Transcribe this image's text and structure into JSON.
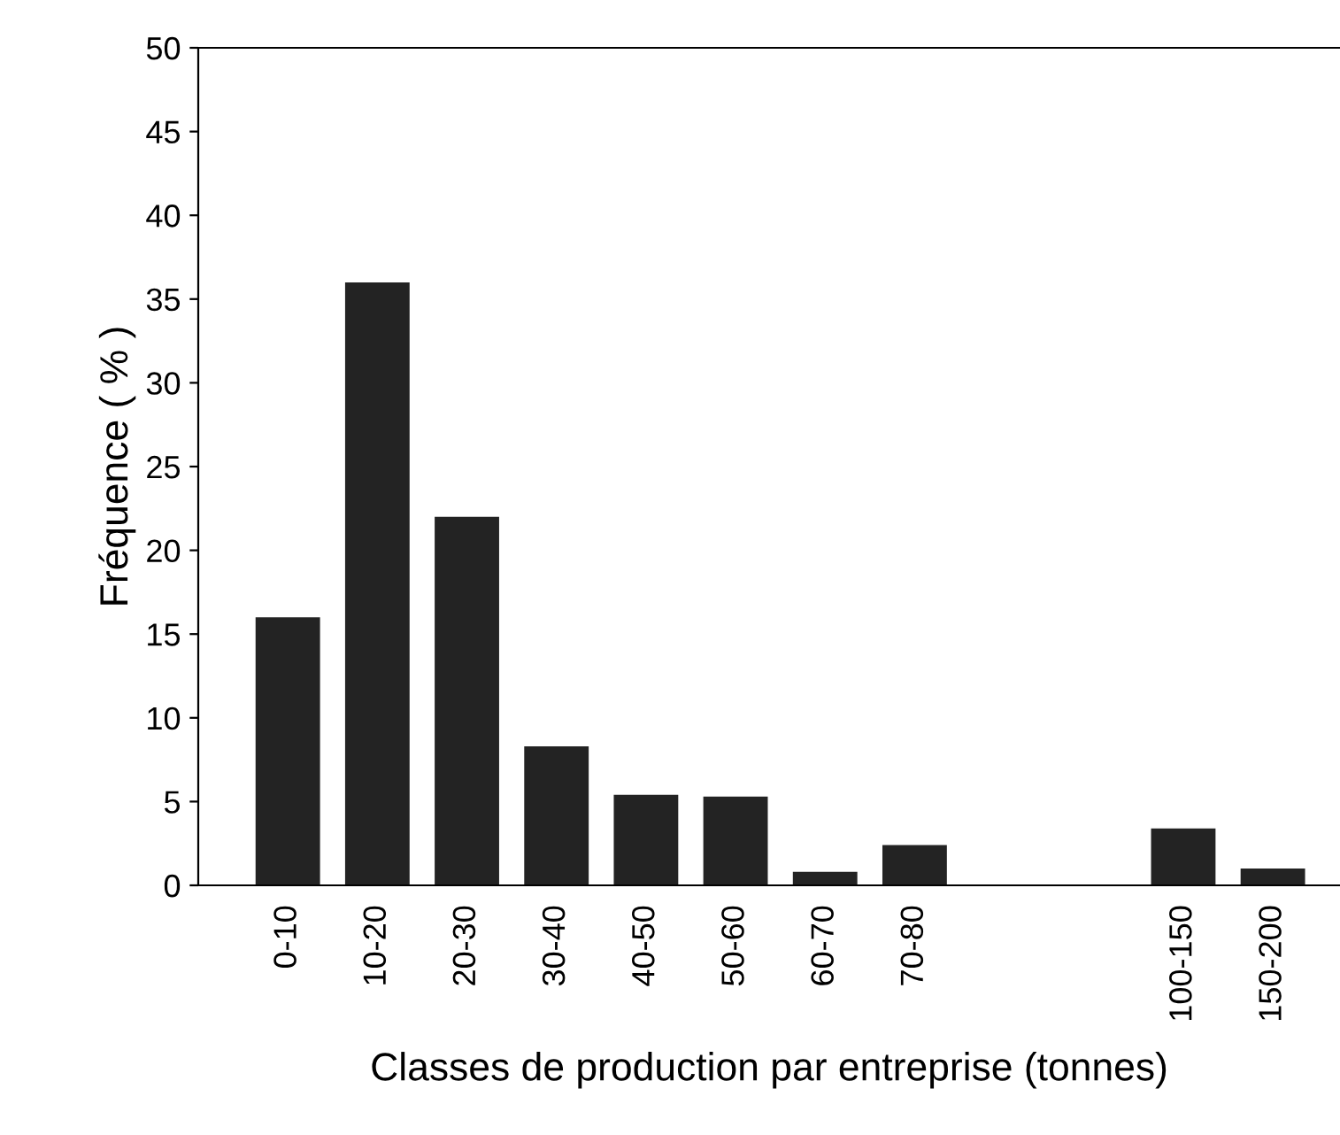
{
  "chart_data": {
    "type": "bar",
    "xlabel": "Classes de production par entreprise (tonnes)",
    "ylabel": "Fréquence ( % )",
    "categories": [
      "0-10",
      "10-20",
      "20-30",
      "30-40",
      "40-50",
      "50-60",
      "60-70",
      "70-80",
      null,
      null,
      "100-150",
      "150-200"
    ],
    "values": [
      16,
      36,
      22,
      8.3,
      5.4,
      5.3,
      0.8,
      2.4,
      null,
      null,
      3.4,
      1.0
    ],
    "color": "#232323",
    "ylim": [
      0,
      50
    ],
    "yticks": [
      0,
      5,
      10,
      15,
      20,
      25,
      30,
      35,
      40,
      45,
      50
    ]
  }
}
